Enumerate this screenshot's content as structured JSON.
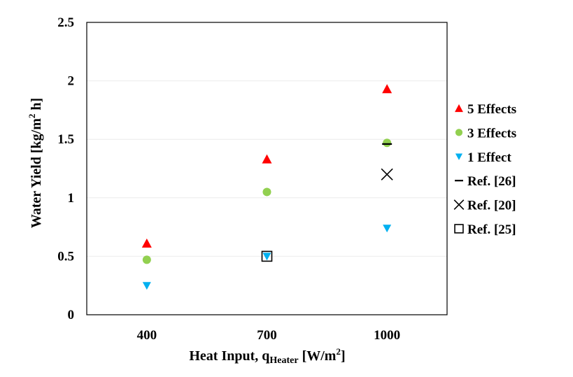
{
  "chart_data": {
    "type": "scatter",
    "title": "",
    "xlabel": {
      "main": "Heat Input, q",
      "sub": "Heater",
      "units_pre": " [W/m",
      "units_sup": "2",
      "units_post": "]"
    },
    "ylabel": {
      "main": "Water Yield [kg/m",
      "sup": "2",
      "post": " h]"
    },
    "categories": [
      "400",
      "700",
      "1000"
    ],
    "ylim": [
      0,
      2.5
    ],
    "yticks": [
      "0",
      "0.5",
      "1",
      "1.5",
      "2",
      "2.5"
    ],
    "ytick_values": [
      0,
      0.5,
      1,
      1.5,
      2,
      2.5
    ],
    "grid": true,
    "legend_position": "right",
    "series": [
      {
        "name": "5 Effects",
        "marker": "triangle-up",
        "color": "#ff0000",
        "x": [
          400,
          700,
          1000
        ],
        "values": [
          0.61,
          1.33,
          1.93
        ]
      },
      {
        "name": "3 Effects",
        "marker": "circle",
        "color": "#92d050",
        "x": [
          400,
          700,
          1000
        ],
        "values": [
          0.47,
          1.05,
          1.47
        ]
      },
      {
        "name": "1 Effect",
        "marker": "triangle-down",
        "color": "#00b0f0",
        "x": [
          400,
          700,
          1000
        ],
        "values": [
          0.25,
          0.5,
          0.74
        ]
      },
      {
        "name": "Ref. [26]",
        "marker": "dash",
        "color": "#000000",
        "x": [
          1000
        ],
        "values": [
          1.46
        ]
      },
      {
        "name": "Ref. [20]",
        "marker": "x",
        "color": "#000000",
        "x": [
          1000
        ],
        "values": [
          1.2
        ]
      },
      {
        "name": "Ref. [25]",
        "marker": "square",
        "color": "#000000",
        "x": [
          700
        ],
        "values": [
          0.5
        ]
      }
    ]
  }
}
